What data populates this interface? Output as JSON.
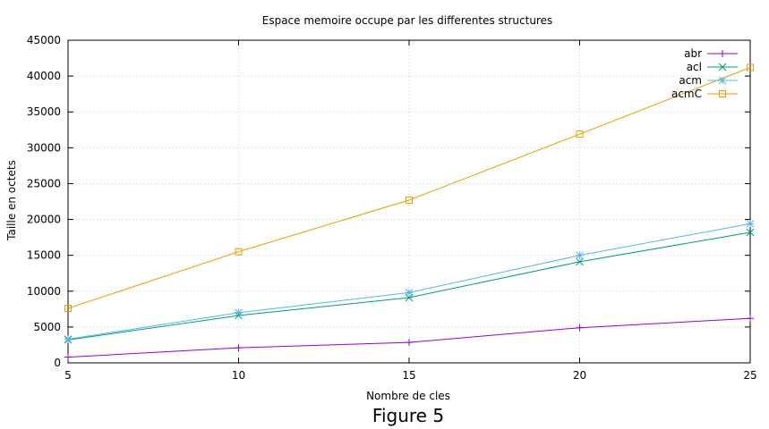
{
  "chart_data": {
    "type": "line",
    "title": "Espace memoire occupe par les differentes structures",
    "xlabel": "Nombre de cles",
    "ylabel": "Taille en octets",
    "x": [
      5,
      10,
      15,
      20,
      25
    ],
    "xlim": [
      5,
      25
    ],
    "ylim": [
      0,
      45000
    ],
    "xticks": [
      5,
      10,
      15,
      20,
      25
    ],
    "yticks": [
      0,
      5000,
      10000,
      15000,
      20000,
      25000,
      30000,
      35000,
      40000,
      45000
    ],
    "grid": true,
    "legend_position": "top-right",
    "series": [
      {
        "name": "abr",
        "color": "#9400d3",
        "marker": "plus",
        "values": [
          800,
          2100,
          2850,
          4900,
          6200
        ]
      },
      {
        "name": "acl",
        "color": "#009e73",
        "marker": "cross",
        "values": [
          3200,
          6600,
          9100,
          14100,
          18200
        ]
      },
      {
        "name": "acm",
        "color": "#56b4e9",
        "marker": "star",
        "values": [
          3300,
          7000,
          9800,
          15000,
          19400
        ]
      },
      {
        "name": "acmC",
        "color": "#e69f00",
        "marker": "square",
        "values": [
          7600,
          15500,
          22700,
          31900,
          41200
        ]
      }
    ]
  },
  "figure_caption": "Figure 5"
}
